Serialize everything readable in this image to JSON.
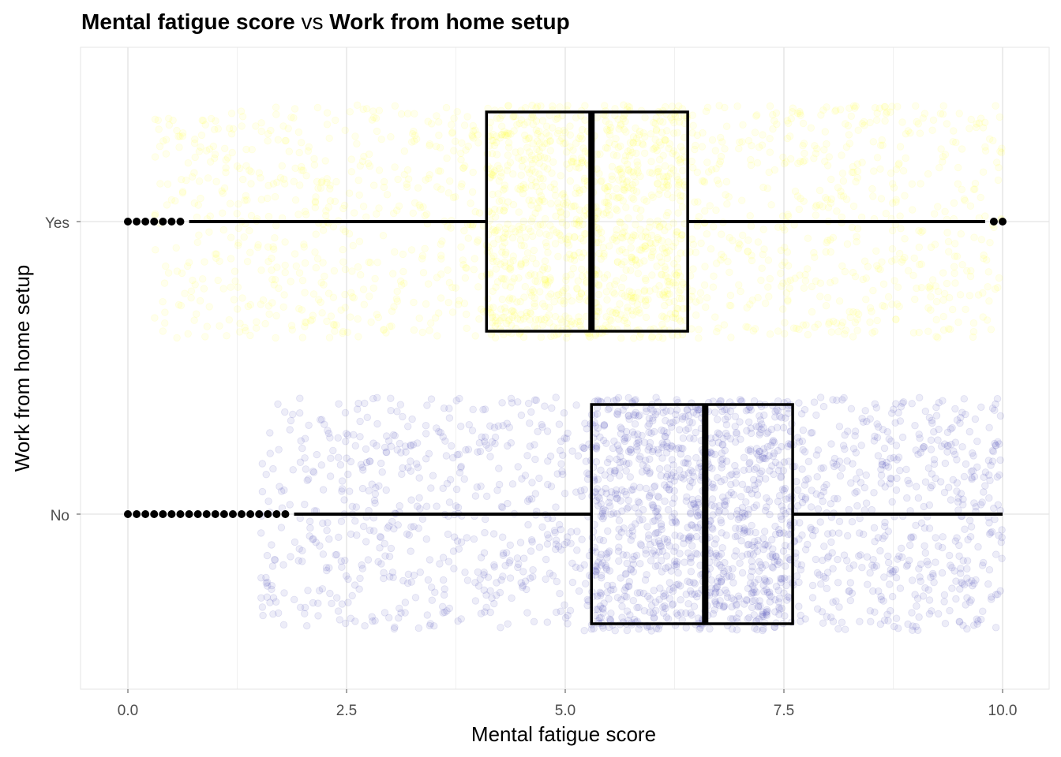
{
  "chart_data": {
    "type": "boxplot",
    "title": {
      "part1": "Mental fatigue score",
      "connector": "vs",
      "part2": "Work from home setup"
    },
    "xlabel": "Mental fatigue score",
    "ylabel": "Work from home setup",
    "xlim": [
      -0.5,
      10.5
    ],
    "xticks": [
      0.0,
      2.5,
      5.0,
      7.5,
      10.0
    ],
    "xtick_labels": [
      "0.0",
      "2.5",
      "5.0",
      "7.5",
      "10.0"
    ],
    "categories": [
      "Yes",
      "No"
    ],
    "grid": true,
    "series": [
      {
        "category": "Yes",
        "point_color": "#ffff00",
        "jitter_points": "dense, concentrated 3.5–6.5",
        "box": {
          "whisker_low": 0.7,
          "q1": 4.1,
          "median": 5.3,
          "q3": 6.4,
          "whisker_high": 9.8
        },
        "outliers": [
          0.0,
          0.1,
          0.2,
          0.3,
          0.4,
          0.5,
          0.6,
          9.9,
          10.0
        ]
      },
      {
        "category": "No",
        "point_color": "#3b3bb3",
        "jitter_points": "dense, concentrated 5.5–8",
        "box": {
          "whisker_low": 1.9,
          "q1": 5.3,
          "median": 6.6,
          "q3": 7.6,
          "whisker_high": 10.0
        },
        "outliers": [
          0.0,
          0.1,
          0.2,
          0.3,
          0.4,
          0.5,
          0.6,
          0.7,
          0.8,
          0.9,
          1.0,
          1.1,
          1.2,
          1.3,
          1.4,
          1.5,
          1.6,
          1.7,
          1.8
        ]
      }
    ]
  }
}
